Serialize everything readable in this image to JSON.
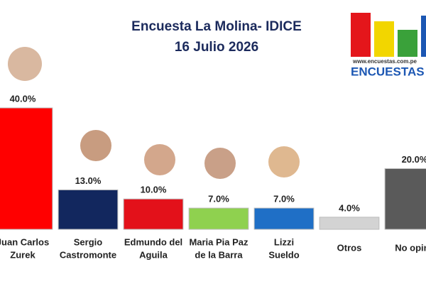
{
  "chart_data": {
    "type": "bar",
    "title": "Encuesta La Molina- IDICE",
    "subtitle": "16 Julio 2026",
    "logo_url": "www.encuestas.com.pe",
    "logo_name": "ENCUESTAS",
    "categories": [
      [
        "Juan Carlos",
        "Zurek"
      ],
      [
        "Sergio",
        "Castromonte"
      ],
      [
        "Edmundo del",
        "Aguila"
      ],
      [
        "Maria Pia Paz",
        "de la Barra"
      ],
      [
        "Lizzi",
        "Sueldo"
      ],
      [
        "Otros"
      ],
      [
        "No opina"
      ]
    ],
    "values": [
      40,
      13,
      10,
      7,
      7,
      4,
      20
    ],
    "value_labels": [
      "40.0%",
      "13.0%",
      "10.0%",
      "7.0%",
      "7.0%",
      "4.0%",
      "20.0%"
    ],
    "colors": [
      "#ff0000",
      "#12275e",
      "#e3111a",
      "#8fd14f",
      "#1f6fc6",
      "#d3d3d3",
      "#5a5a5a"
    ],
    "ylim": [
      0,
      40
    ]
  }
}
